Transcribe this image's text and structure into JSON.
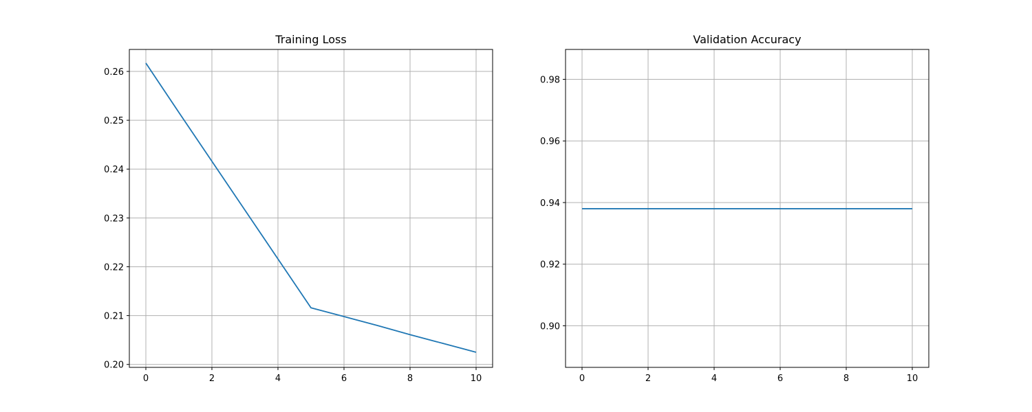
{
  "chart_data": [
    {
      "type": "line",
      "title": "Training Loss",
      "xlabel": "",
      "ylabel": "",
      "xlim": [
        -0.5,
        10.5
      ],
      "ylim": [
        0.1994,
        0.2645
      ],
      "x_ticks": [
        0,
        2,
        4,
        6,
        8,
        10
      ],
      "y_ticks": [
        0.2,
        0.21,
        0.22,
        0.23,
        0.24,
        0.25,
        0.26
      ],
      "y_tick_labels": [
        "0.20",
        "0.21",
        "0.22",
        "0.23",
        "0.24",
        "0.25",
        "0.26"
      ],
      "grid": true,
      "color": "#1f77b4",
      "series": [
        {
          "x": [
            0,
            1,
            2,
            3,
            4,
            5,
            6,
            7,
            8,
            9,
            10
          ],
          "y": [
            0.2617,
            0.2516,
            0.2416,
            0.2316,
            0.2216,
            0.2116,
            0.2098,
            0.208,
            0.2061,
            0.2043,
            0.2025
          ]
        }
      ]
    },
    {
      "type": "line",
      "title": "Validation Accuracy",
      "xlabel": "",
      "ylabel": "",
      "xlim": [
        -0.5,
        10.5
      ],
      "ylim": [
        0.8865,
        0.9897
      ],
      "x_ticks": [
        0,
        2,
        4,
        6,
        8,
        10
      ],
      "y_ticks": [
        0.9,
        0.92,
        0.94,
        0.96,
        0.98
      ],
      "y_tick_labels": [
        "0.90",
        "0.92",
        "0.94",
        "0.96",
        "0.98"
      ],
      "grid": true,
      "color": "#1f77b4",
      "series": [
        {
          "x": [
            0,
            1,
            2,
            3,
            4,
            5,
            6,
            7,
            8,
            9,
            10
          ],
          "y": [
            0.938,
            0.938,
            0.938,
            0.938,
            0.938,
            0.938,
            0.938,
            0.938,
            0.938,
            0.938,
            0.938
          ]
        }
      ]
    }
  ]
}
